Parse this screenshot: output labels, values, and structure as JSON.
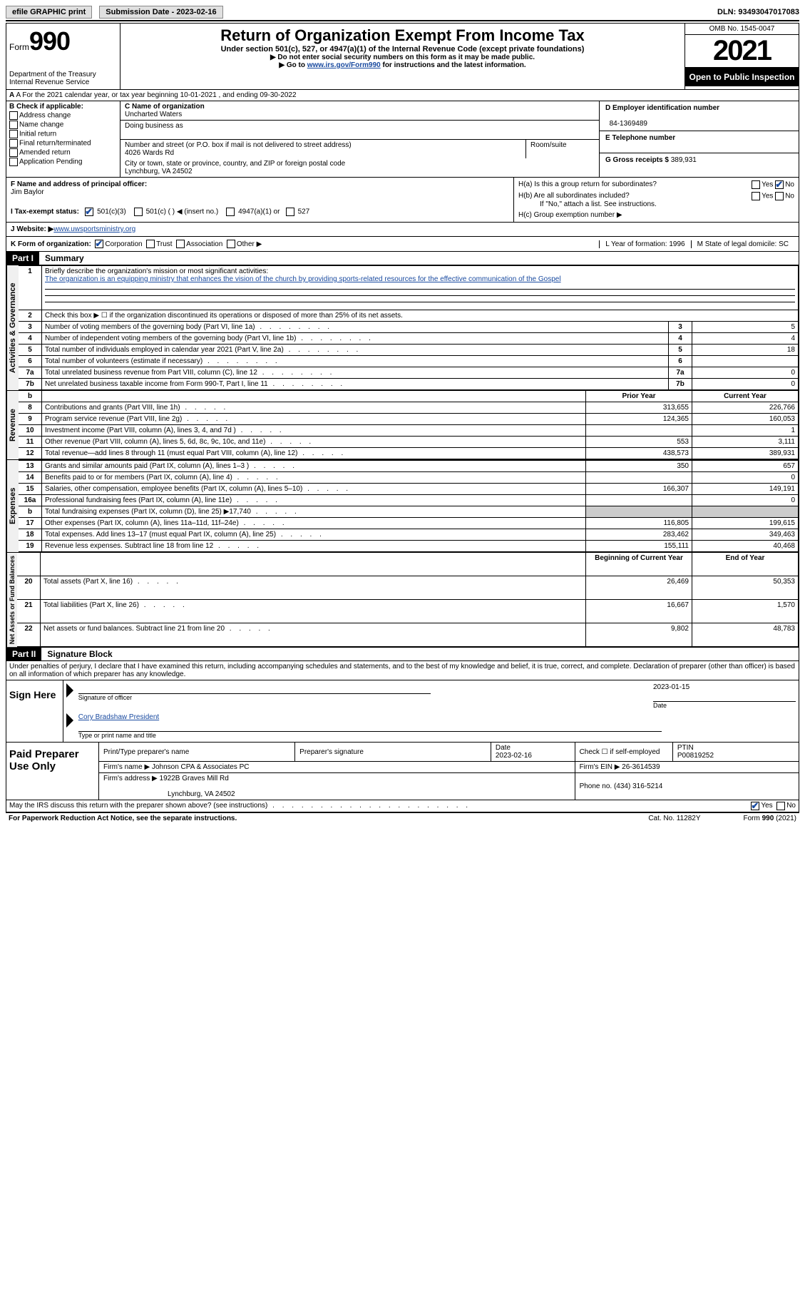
{
  "top": {
    "efile": "efile GRAPHIC print",
    "sub_date_label": "Submission Date - 2023-02-16",
    "dln": "DLN: 93493047017083"
  },
  "header": {
    "form_word": "Form",
    "form_num": "990",
    "dept": "Department of the Treasury Internal Revenue Service",
    "title": "Return of Organization Exempt From Income Tax",
    "sub": "Under section 501(c), 527, or 4947(a)(1) of the Internal Revenue Code (except private foundations)",
    "note1": "▶ Do not enter social security numbers on this form as it may be made public.",
    "note2_a": "▶ Go to ",
    "note2_link": "www.irs.gov/Form990",
    "note2_b": " for instructions and the latest information.",
    "omb": "OMB No. 1545-0047",
    "year": "2021",
    "open": "Open to Public Inspection"
  },
  "rowA": "A For the 2021 calendar year, or tax year beginning 10-01-2021    , and ending 09-30-2022",
  "colB": {
    "label": "B Check if applicable:",
    "items": [
      "Address change",
      "Name change",
      "Initial return",
      "Final return/terminated",
      "Amended return",
      "Application Pending"
    ]
  },
  "colC": {
    "name_label": "C Name of organization",
    "name": "Uncharted Waters",
    "dba": "Doing business as",
    "addr_label": "Number and street (or P.O. box if mail is not delivered to street address)",
    "addr": "4026 Wards Rd",
    "room": "Room/suite",
    "city_label": "City or town, state or province, country, and ZIP or foreign postal code",
    "city": "Lynchburg, VA  24502"
  },
  "colD": {
    "ein_label": "D Employer identification number",
    "ein": "84-1369489",
    "phone_label": "E Telephone number",
    "gross_label": "G Gross receipts $",
    "gross": "389,931"
  },
  "rowF": {
    "label": "F Name and address of principal officer:",
    "name": "Jim Baylor"
  },
  "rowH": {
    "ha": "H(a)  Is this a group return for subordinates?",
    "hb": "H(b)  Are all subordinates included?",
    "hb_note": "If \"No,\" attach a list. See instructions.",
    "hc": "H(c)  Group exemption number ▶",
    "yes": "Yes",
    "no": "No"
  },
  "rowI": {
    "label": "I   Tax-exempt status:",
    "o1": "501(c)(3)",
    "o2": "501(c) (    ) ◀ (insert no.)",
    "o3": "4947(a)(1) or",
    "o4": "527"
  },
  "rowJ": {
    "label": "J  Website: ▶",
    "val": "  www.uwsportsministry.org"
  },
  "rowK": {
    "label": "K Form of organization:",
    "o1": "Corporation",
    "o2": "Trust",
    "o3": "Association",
    "o4": "Other ▶",
    "l": "L Year of formation: 1996",
    "m": "M State of legal domicile: SC"
  },
  "part1": {
    "header": "Part I",
    "title": "Summary",
    "line1": "Briefly describe the organization's mission or most significant activities:",
    "mission": "The organization is an equipping ministry that enhances the vision of the church by providing sports-related resources for the effective communication of the Gospel",
    "line2": "Check this box ▶ ☐ if the organization discontinued its operations or disposed of more than 25% of its net assets.",
    "vert_ag": "Activities & Governance",
    "vert_rev": "Revenue",
    "vert_exp": "Expenses",
    "vert_net": "Net Assets or Fund Balances",
    "rows_ag": [
      {
        "n": "3",
        "label": "Number of voting members of the governing body (Part VI, line 1a)",
        "val": "5"
      },
      {
        "n": "4",
        "label": "Number of independent voting members of the governing body (Part VI, line 1b)",
        "val": "4"
      },
      {
        "n": "5",
        "label": "Total number of individuals employed in calendar year 2021 (Part V, line 2a)",
        "val": "18"
      },
      {
        "n": "6",
        "label": "Total number of volunteers (estimate if necessary)",
        "val": ""
      },
      {
        "n": "7a",
        "label": "Total unrelated business revenue from Part VIII, column (C), line 12",
        "val": "0"
      },
      {
        "n": "7b",
        "label": "Net unrelated business taxable income from Form 990-T, Part I, line 11",
        "val": "0"
      }
    ],
    "prior": "Prior Year",
    "current": "Current Year",
    "rows_rev": [
      {
        "n": "8",
        "label": "Contributions and grants (Part VIII, line 1h)",
        "py": "313,655",
        "cy": "226,766"
      },
      {
        "n": "9",
        "label": "Program service revenue (Part VIII, line 2g)",
        "py": "124,365",
        "cy": "160,053"
      },
      {
        "n": "10",
        "label": "Investment income (Part VIII, column (A), lines 3, 4, and 7d )",
        "py": "",
        "cy": "1"
      },
      {
        "n": "11",
        "label": "Other revenue (Part VIII, column (A), lines 5, 6d, 8c, 9c, 10c, and 11e)",
        "py": "553",
        "cy": "3,111"
      },
      {
        "n": "12",
        "label": "Total revenue—add lines 8 through 11 (must equal Part VIII, column (A), line 12)",
        "py": "438,573",
        "cy": "389,931"
      }
    ],
    "rows_exp": [
      {
        "n": "13",
        "label": "Grants and similar amounts paid (Part IX, column (A), lines 1–3 )",
        "py": "350",
        "cy": "657"
      },
      {
        "n": "14",
        "label": "Benefits paid to or for members (Part IX, column (A), line 4)",
        "py": "",
        "cy": "0"
      },
      {
        "n": "15",
        "label": "Salaries, other compensation, employee benefits (Part IX, column (A), lines 5–10)",
        "py": "166,307",
        "cy": "149,191"
      },
      {
        "n": "16a",
        "label": "Professional fundraising fees (Part IX, column (A), line 11e)",
        "py": "",
        "cy": "0"
      },
      {
        "n": "b",
        "label": "Total fundraising expenses (Part IX, column (D), line 25) ▶17,740",
        "py": "SHADE",
        "cy": "SHADE"
      },
      {
        "n": "17",
        "label": "Other expenses (Part IX, column (A), lines 11a–11d, 11f–24e)",
        "py": "116,805",
        "cy": "199,615"
      },
      {
        "n": "18",
        "label": "Total expenses. Add lines 13–17 (must equal Part IX, column (A), line 25)",
        "py": "283,462",
        "cy": "349,463"
      },
      {
        "n": "19",
        "label": "Revenue less expenses. Subtract line 18 from line 12",
        "py": "155,111",
        "cy": "40,468"
      }
    ],
    "begin": "Beginning of Current Year",
    "end": "End of Year",
    "rows_net": [
      {
        "n": "20",
        "label": "Total assets (Part X, line 16)",
        "py": "26,469",
        "cy": "50,353"
      },
      {
        "n": "21",
        "label": "Total liabilities (Part X, line 26)",
        "py": "16,667",
        "cy": "1,570"
      },
      {
        "n": "22",
        "label": "Net assets or fund balances. Subtract line 21 from line 20",
        "py": "9,802",
        "cy": "48,783"
      }
    ]
  },
  "part2": {
    "header": "Part II",
    "title": "Signature Block",
    "perjury": "Under penalties of perjury, I declare that I have examined this return, including accompanying schedules and statements, and to the best of my knowledge and belief, it is true, correct, and complete. Declaration of preparer (other than officer) is based on all information of which preparer has any knowledge.",
    "sign_here": "Sign Here",
    "sig_officer": "Signature of officer",
    "date": "Date",
    "sig_date": "2023-01-15",
    "name_title": "Cory Bradshaw  President",
    "type_name": "Type or print name and title",
    "paid": "Paid Preparer Use Only",
    "p_name": "Print/Type preparer's name",
    "p_sig": "Preparer's signature",
    "p_date_l": "Date",
    "p_date": "2023-02-16",
    "p_check": "Check ☐ if self-employed",
    "ptin_l": "PTIN",
    "ptin": "P00819252",
    "firm_name_l": "Firm's name     ▶",
    "firm_name": "Johnson CPA & Associates PC",
    "firm_ein_l": "Firm's EIN ▶",
    "firm_ein": "26-3614539",
    "firm_addr_l": "Firm's address ▶",
    "firm_addr": "1922B Graves Mill Rd",
    "firm_city": "Lynchburg, VA  24502",
    "phone_l": "Phone no.",
    "phone": "(434) 316-5214",
    "irs_q": "May the IRS discuss this return with the preparer shown above? (see instructions)",
    "yes": "Yes",
    "no": "No"
  },
  "footer": {
    "pra": "For Paperwork Reduction Act Notice, see the separate instructions.",
    "cat": "Cat. No. 11282Y",
    "form": "Form 990 (2021)"
  }
}
